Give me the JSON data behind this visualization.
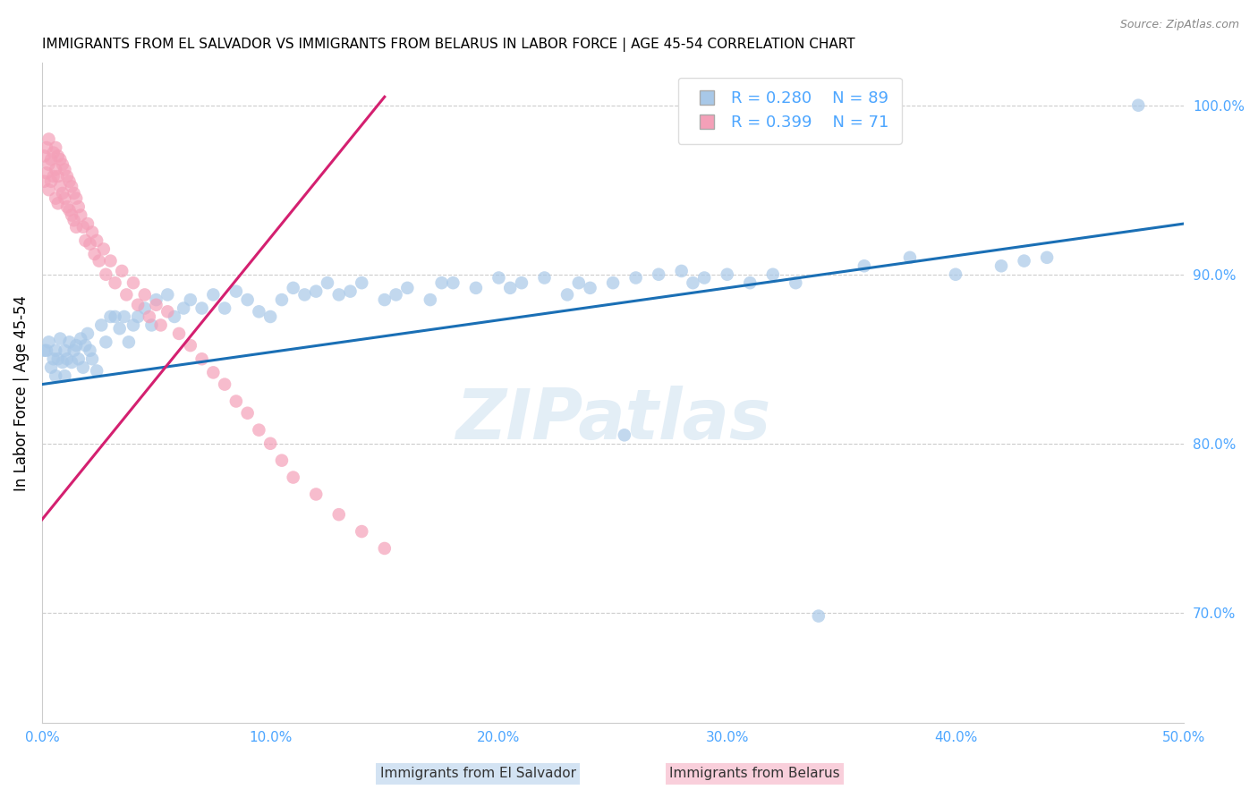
{
  "title": "IMMIGRANTS FROM EL SALVADOR VS IMMIGRANTS FROM BELARUS IN LABOR FORCE | AGE 45-54 CORRELATION CHART",
  "source": "Source: ZipAtlas.com",
  "ylabel": "In Labor Force | Age 45-54",
  "xlim": [
    0.0,
    0.5
  ],
  "ylim": [
    0.635,
    1.025
  ],
  "xticks": [
    0.0,
    0.1,
    0.2,
    0.3,
    0.4,
    0.5
  ],
  "xtick_labels": [
    "0.0%",
    "10.0%",
    "20.0%",
    "30.0%",
    "40.0%",
    "50.0%"
  ],
  "yticks": [
    0.7,
    0.8,
    0.9,
    1.0
  ],
  "ytick_labels": [
    "70.0%",
    "80.0%",
    "90.0%",
    "100.0%"
  ],
  "legend_r1": "R = 0.280",
  "legend_n1": "N = 89",
  "legend_r2": "R = 0.399",
  "legend_n2": "N = 71",
  "blue_color": "#a8c8e8",
  "pink_color": "#f4a0b8",
  "blue_line_color": "#1a6fb5",
  "pink_line_color": "#d42070",
  "axis_color": "#4da6ff",
  "watermark": "ZIPatlas",
  "blue_line_x0": 0.0,
  "blue_line_y0": 0.835,
  "blue_line_x1": 0.5,
  "blue_line_y1": 0.93,
  "pink_line_x0": 0.0,
  "pink_line_y0": 0.755,
  "pink_line_x1": 0.15,
  "pink_line_y1": 1.005,
  "el_salvador_x": [
    0.001,
    0.002,
    0.003,
    0.004,
    0.005,
    0.006,
    0.006,
    0.007,
    0.008,
    0.009,
    0.01,
    0.01,
    0.011,
    0.012,
    0.013,
    0.014,
    0.015,
    0.016,
    0.017,
    0.018,
    0.019,
    0.02,
    0.021,
    0.022,
    0.024,
    0.026,
    0.028,
    0.03,
    0.032,
    0.034,
    0.036,
    0.038,
    0.04,
    0.042,
    0.045,
    0.048,
    0.05,
    0.055,
    0.058,
    0.062,
    0.065,
    0.07,
    0.075,
    0.08,
    0.085,
    0.09,
    0.095,
    0.1,
    0.105,
    0.11,
    0.115,
    0.12,
    0.125,
    0.13,
    0.135,
    0.14,
    0.15,
    0.155,
    0.16,
    0.17,
    0.175,
    0.18,
    0.19,
    0.2,
    0.205,
    0.21,
    0.22,
    0.23,
    0.235,
    0.24,
    0.25,
    0.255,
    0.26,
    0.27,
    0.28,
    0.285,
    0.29,
    0.3,
    0.31,
    0.32,
    0.33,
    0.34,
    0.36,
    0.38,
    0.4,
    0.42,
    0.43,
    0.44,
    0.48
  ],
  "el_salvador_y": [
    0.855,
    0.855,
    0.86,
    0.845,
    0.85,
    0.855,
    0.84,
    0.85,
    0.862,
    0.848,
    0.855,
    0.84,
    0.85,
    0.86,
    0.848,
    0.855,
    0.858,
    0.85,
    0.862,
    0.845,
    0.858,
    0.865,
    0.855,
    0.85,
    0.843,
    0.87,
    0.86,
    0.875,
    0.875,
    0.868,
    0.875,
    0.86,
    0.87,
    0.875,
    0.88,
    0.87,
    0.885,
    0.888,
    0.875,
    0.88,
    0.885,
    0.88,
    0.888,
    0.88,
    0.89,
    0.885,
    0.878,
    0.875,
    0.885,
    0.892,
    0.888,
    0.89,
    0.895,
    0.888,
    0.89,
    0.895,
    0.885,
    0.888,
    0.892,
    0.885,
    0.895,
    0.895,
    0.892,
    0.898,
    0.892,
    0.895,
    0.898,
    0.888,
    0.895,
    0.892,
    0.895,
    0.805,
    0.898,
    0.9,
    0.902,
    0.895,
    0.898,
    0.9,
    0.895,
    0.9,
    0.895,
    0.698,
    0.905,
    0.91,
    0.9,
    0.905,
    0.908,
    0.91,
    1.0
  ],
  "belarus_x": [
    0.001,
    0.001,
    0.002,
    0.002,
    0.003,
    0.003,
    0.003,
    0.004,
    0.004,
    0.005,
    0.005,
    0.006,
    0.006,
    0.006,
    0.007,
    0.007,
    0.007,
    0.008,
    0.008,
    0.009,
    0.009,
    0.01,
    0.01,
    0.011,
    0.011,
    0.012,
    0.012,
    0.013,
    0.013,
    0.014,
    0.014,
    0.015,
    0.015,
    0.016,
    0.017,
    0.018,
    0.019,
    0.02,
    0.021,
    0.022,
    0.023,
    0.024,
    0.025,
    0.027,
    0.028,
    0.03,
    0.032,
    0.035,
    0.037,
    0.04,
    0.042,
    0.045,
    0.047,
    0.05,
    0.052,
    0.055,
    0.06,
    0.065,
    0.07,
    0.075,
    0.08,
    0.085,
    0.09,
    0.095,
    0.1,
    0.105,
    0.11,
    0.12,
    0.13,
    0.14,
    0.15
  ],
  "belarus_y": [
    0.97,
    0.955,
    0.975,
    0.96,
    0.98,
    0.965,
    0.95,
    0.968,
    0.955,
    0.972,
    0.958,
    0.975,
    0.962,
    0.945,
    0.97,
    0.958,
    0.942,
    0.968,
    0.952,
    0.965,
    0.948,
    0.962,
    0.945,
    0.958,
    0.94,
    0.955,
    0.938,
    0.952,
    0.935,
    0.948,
    0.932,
    0.945,
    0.928,
    0.94,
    0.935,
    0.928,
    0.92,
    0.93,
    0.918,
    0.925,
    0.912,
    0.92,
    0.908,
    0.915,
    0.9,
    0.908,
    0.895,
    0.902,
    0.888,
    0.895,
    0.882,
    0.888,
    0.875,
    0.882,
    0.87,
    0.878,
    0.865,
    0.858,
    0.85,
    0.842,
    0.835,
    0.825,
    0.818,
    0.808,
    0.8,
    0.79,
    0.78,
    0.77,
    0.758,
    0.748,
    0.738
  ]
}
